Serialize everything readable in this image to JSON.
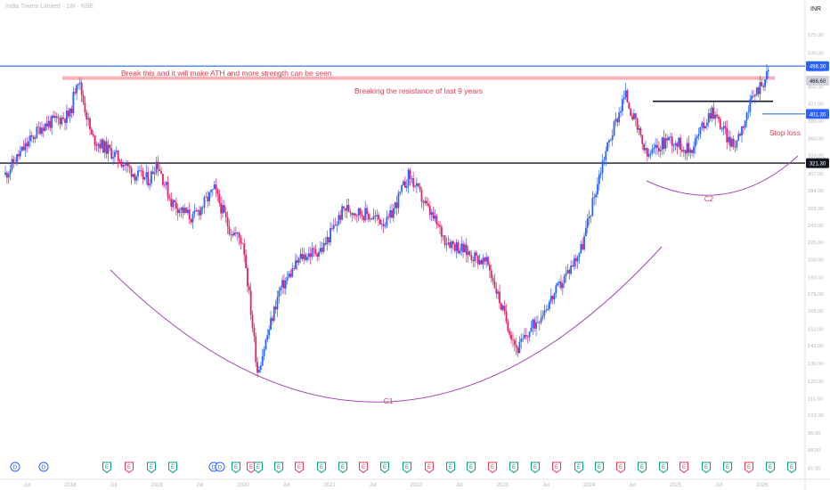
{
  "header": {
    "symbol_line": "India Tiwem Limited · 1W · NSE",
    "currency": "INR"
  },
  "chart_data": {
    "type": "candlestick",
    "title": "India Tiwem Limited · 1W · NSE",
    "currency": "INR",
    "y_scale": "log",
    "ylim": [
      80,
      620
    ],
    "grid": false,
    "y_ticks": [
      "575.00",
      "530.00",
      "490.00",
      "455.00",
      "421.00",
      "389.00",
      "360.00",
      "333.00",
      "307.00",
      "284.00",
      "262.00",
      "243.00",
      "225.00",
      "208.00",
      "192.00",
      "178.00",
      "165.00",
      "152.00",
      "141.00",
      "130.00",
      "120.00",
      "111.00",
      "103.00",
      "95.00",
      "88.00",
      "81.00"
    ],
    "x_ticks": [
      "Jul",
      "2018",
      "Jul",
      "2019",
      "Jul",
      "2020",
      "Jul",
      "2021",
      "Jul",
      "2022",
      "Jul",
      "2023",
      "Jul",
      "2024",
      "Jul",
      "2025",
      "Jul",
      "2026"
    ],
    "x_range": [
      "2017-04",
      "2026-03"
    ],
    "price_series": [
      {
        "date": "2017-04",
        "close": 305
      },
      {
        "date": "2017-06",
        "close": 335
      },
      {
        "date": "2017-09",
        "close": 380
      },
      {
        "date": "2018-01",
        "close": 400
      },
      {
        "date": "2018-02",
        "close": 478
      },
      {
        "date": "2018-04",
        "close": 360
      },
      {
        "date": "2018-07",
        "close": 335
      },
      {
        "date": "2018-10",
        "close": 305
      },
      {
        "date": "2018-12",
        "close": 298
      },
      {
        "date": "2019-01",
        "close": 325
      },
      {
        "date": "2019-03",
        "close": 270
      },
      {
        "date": "2019-06",
        "close": 250
      },
      {
        "date": "2019-09",
        "close": 285
      },
      {
        "date": "2019-11",
        "close": 240
      },
      {
        "date": "2020-01",
        "close": 225
      },
      {
        "date": "2020-03",
        "close": 125
      },
      {
        "date": "2020-06",
        "close": 180
      },
      {
        "date": "2020-09",
        "close": 210
      },
      {
        "date": "2020-12",
        "close": 218
      },
      {
        "date": "2021-03",
        "close": 262
      },
      {
        "date": "2021-06",
        "close": 255
      },
      {
        "date": "2021-09",
        "close": 245
      },
      {
        "date": "2021-12",
        "close": 305
      },
      {
        "date": "2022-02",
        "close": 270
      },
      {
        "date": "2022-05",
        "close": 228
      },
      {
        "date": "2022-08",
        "close": 215
      },
      {
        "date": "2022-11",
        "close": 203
      },
      {
        "date": "2023-01",
        "close": 165
      },
      {
        "date": "2023-03",
        "close": 138
      },
      {
        "date": "2023-06",
        "close": 160
      },
      {
        "date": "2023-09",
        "close": 185
      },
      {
        "date": "2023-12",
        "close": 220
      },
      {
        "date": "2024-03",
        "close": 330
      },
      {
        "date": "2024-06",
        "close": 440
      },
      {
        "date": "2024-09",
        "close": 330
      },
      {
        "date": "2024-12",
        "close": 360
      },
      {
        "date": "2025-03",
        "close": 340
      },
      {
        "date": "2025-06",
        "close": 410
      },
      {
        "date": "2025-09",
        "close": 345
      },
      {
        "date": "2025-12",
        "close": 440
      },
      {
        "date": "2026-02",
        "close": 486.6
      }
    ],
    "price_labels": [
      {
        "text": "498.30",
        "color": "#2962ff"
      },
      {
        "text": "466.60",
        "color": "#d1d4dc"
      },
      {
        "text": "401.30",
        "color": "#2962ff"
      },
      {
        "text": "321.30",
        "color": "#131722"
      }
    ],
    "levels": [
      {
        "name": "ath-line",
        "price": 498.3,
        "color": "#2962ff"
      },
      {
        "name": "resistance-band",
        "price": 472,
        "color": "#f6b2b6"
      },
      {
        "name": "breakout-line",
        "price": 425,
        "color": "#131722"
      },
      {
        "name": "stop-loss-line",
        "price": 401.3,
        "color": "#2962ff"
      },
      {
        "name": "support-line",
        "price": 321.3,
        "color": "#131722"
      }
    ],
    "annotations": {
      "ath_note": "Break this and it will make ATH and more strength can be seen",
      "resistance_note": "Breaking the resistance of last 9 years",
      "stop_loss": "Stop loss",
      "c1": "C1",
      "c2": "C2"
    },
    "event_markers": [
      "D",
      "D",
      "E",
      "E",
      "E",
      "E",
      "D",
      "D",
      "E",
      "E",
      "E",
      "E",
      "E",
      "E",
      "E",
      "E",
      "E",
      "E",
      "E",
      "E",
      "E",
      "E",
      "E",
      "E",
      "E",
      "E",
      "E",
      "E",
      "E",
      "E",
      "E",
      "E",
      "E",
      "E",
      "E",
      "E",
      "E"
    ],
    "colors": {
      "up": "#2962ff",
      "down": "#e91e63",
      "annotation": "#e53950",
      "cup": "#a548b4",
      "axis_text": "#b2b5be"
    }
  }
}
